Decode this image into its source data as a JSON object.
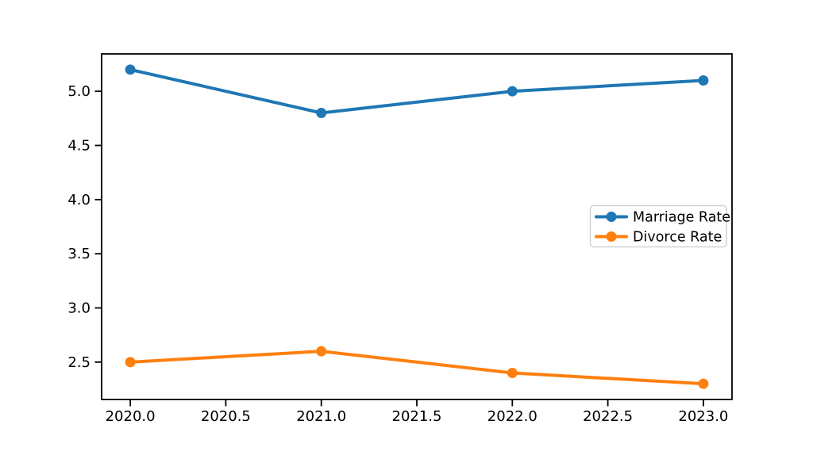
{
  "chart_data": {
    "type": "line",
    "title": "",
    "xlabel": "",
    "ylabel": "",
    "x": [
      2020,
      2021,
      2022,
      2023
    ],
    "series": [
      {
        "name": "Marriage Rate",
        "values": [
          5.2,
          4.8,
          5.0,
          5.1
        ],
        "color": "#1f77b4",
        "marker": "circle"
      },
      {
        "name": "Divorce Rate",
        "values": [
          2.5,
          2.6,
          2.4,
          2.3
        ],
        "color": "#ff7f0e",
        "marker": "circle"
      }
    ],
    "xlim": [
      2019.85,
      2023.15
    ],
    "ylim": [
      2.155,
      5.345
    ],
    "x_ticks": [
      2020.0,
      2020.5,
      2021.0,
      2021.5,
      2022.0,
      2022.5,
      2023.0
    ],
    "x_tick_labels": [
      "2020.0",
      "2020.5",
      "2021.0",
      "2021.5",
      "2022.0",
      "2022.5",
      "2023.0"
    ],
    "y_ticks": [
      2.5,
      3.0,
      3.5,
      4.0,
      4.5,
      5.0
    ],
    "y_tick_labels": [
      "2.5",
      "3.0",
      "3.5",
      "4.0",
      "4.5",
      "5.0"
    ],
    "grid": false,
    "legend_position": "center right",
    "legend_entries": [
      "Marriage Rate",
      "Divorce Rate"
    ]
  },
  "style_colors": {
    "spine": "#000000",
    "tick_label": "#000000",
    "legend_border": "#cccccc",
    "legend_background": "#ffffff",
    "figure_background": "#ffffff"
  }
}
